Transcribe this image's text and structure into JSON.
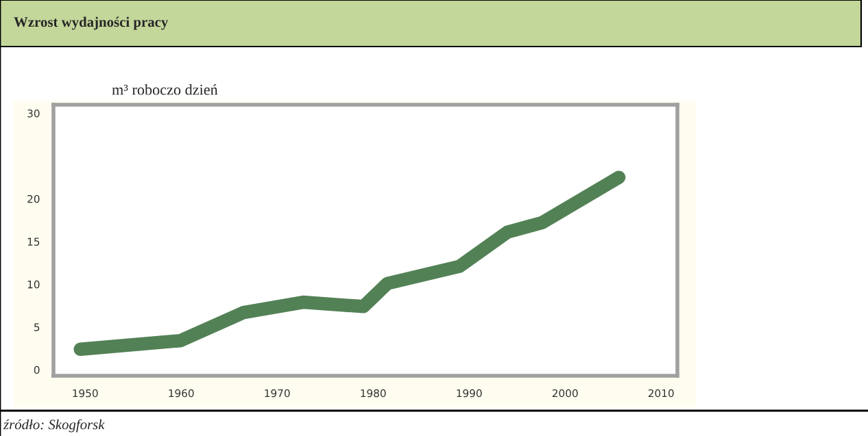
{
  "chart_data": {
    "type": "line",
    "title": "Wzrost wydajności pracy",
    "ylabel": "m³ roboczo dzień",
    "x": [
      1949.5,
      1959.9,
      1966.5,
      1972.7,
      1979,
      1981.5,
      1989,
      1994,
      1997.6,
      2005.6
    ],
    "values": [
      2.4,
      3.4,
      6.7,
      7.9,
      7.4,
      10.1,
      12.1,
      16.1,
      17.2,
      22.5
    ],
    "color": "#538156",
    "xlim": [
      1946.7,
      2011.7
    ],
    "ylim": [
      -0.7,
      31
    ],
    "xticks": [
      1950,
      1960,
      1970,
      1980,
      1990,
      2000,
      2010
    ],
    "yticks": [
      0,
      5,
      10,
      15,
      20,
      30
    ],
    "annotations": [
      "źródło: Skogforsk"
    ]
  }
}
